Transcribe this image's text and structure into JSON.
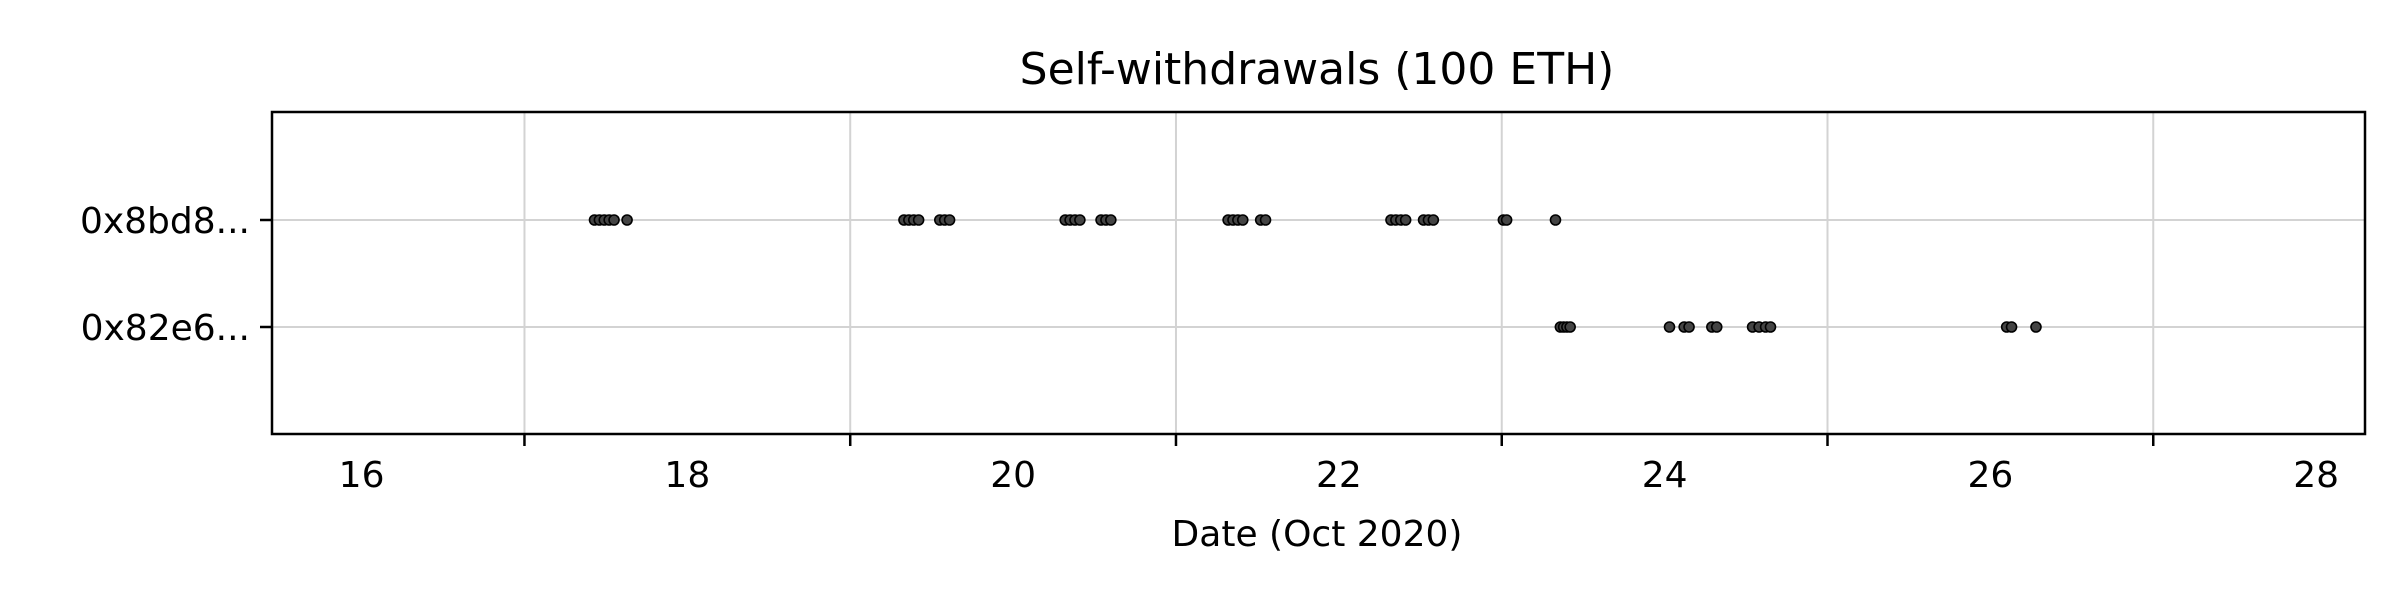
{
  "chart_data": {
    "type": "scatter",
    "title": "Self-withdrawals (100 ETH)",
    "xlabel": "Date (Oct 2020)",
    "ylabel": "",
    "xlim": [
      15.45,
      28.3
    ],
    "x_tick_labels": [
      16,
      18,
      20,
      22,
      24,
      26,
      28
    ],
    "x_minor_ticks": [
      17,
      19,
      21,
      23,
      25,
      27
    ],
    "grid": true,
    "legend": false,
    "marker_color": "#444444",
    "categories": [
      "0x8bd8...",
      "0x82e6..."
    ],
    "series": [
      {
        "category": "0x8bd8...",
        "x": [
          17.43,
          17.46,
          17.49,
          17.52,
          17.55,
          17.63,
          19.33,
          19.36,
          19.39,
          19.42,
          19.55,
          19.58,
          19.61,
          20.32,
          20.35,
          20.38,
          20.41,
          20.54,
          20.57,
          20.6,
          21.32,
          21.35,
          21.38,
          21.41,
          21.52,
          21.55,
          22.32,
          22.35,
          22.38,
          22.41,
          22.52,
          22.55,
          22.58,
          23.01,
          23.03,
          23.33
        ]
      },
      {
        "category": "0x82e6...",
        "x": [
          23.36,
          23.38,
          23.4,
          23.42,
          24.03,
          24.12,
          24.15,
          24.29,
          24.32,
          24.54,
          24.58,
          24.62,
          24.65,
          26.1,
          26.13,
          26.28
        ]
      }
    ]
  }
}
